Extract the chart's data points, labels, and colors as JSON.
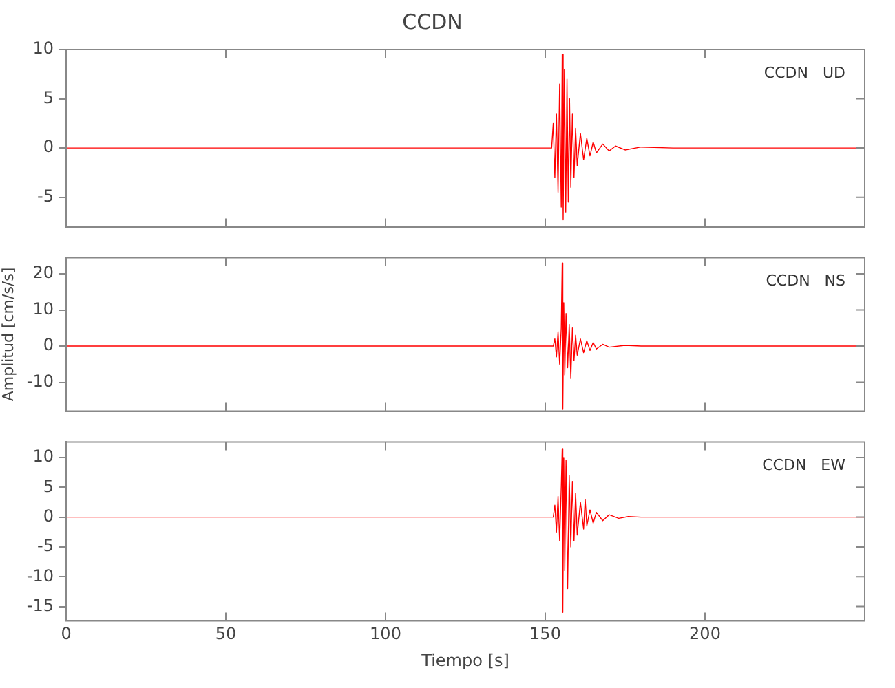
{
  "chart_data": [
    {
      "type": "line",
      "title": "CCDN",
      "annotations": [
        "CCDN   UD"
      ],
      "xlim": [
        0,
        250
      ],
      "xticks": [
        0,
        50,
        100,
        150,
        200
      ],
      "ylim": [
        -8,
        10
      ],
      "yticks": [
        -5,
        0,
        5,
        10
      ],
      "tick_labels": "y",
      "series": [
        {
          "color": "#ff0000",
          "x": [
            0,
            25,
            50,
            75,
            100,
            125,
            150,
            152,
            152.5,
            153,
            153.5,
            154,
            154.5,
            155,
            155.3,
            155.6,
            156,
            156.4,
            156.8,
            157.2,
            157.6,
            158,
            158.5,
            159,
            159.5,
            160,
            161,
            162,
            163,
            164,
            165,
            166,
            168,
            170,
            172,
            175,
            180,
            190,
            200,
            250
          ],
          "values": [
            0,
            0,
            0,
            0,
            0,
            0,
            0,
            0,
            2.5,
            -3,
            3.5,
            -4.5,
            6.5,
            -6,
            9.5,
            -7.3,
            8,
            -6.5,
            7,
            -5.5,
            5,
            -4,
            3.5,
            -3,
            2,
            -1.8,
            1.5,
            -1.2,
            1,
            -0.8,
            0.6,
            -0.5,
            0.4,
            -0.3,
            0.2,
            -0.2,
            0.1,
            0,
            0,
            0
          ]
        }
      ]
    },
    {
      "type": "line",
      "ylabel": "Amplitud [cm/s/s]",
      "annotations": [
        "CCDN   NS"
      ],
      "xlim": [
        0,
        250
      ],
      "xticks": [
        0,
        50,
        100,
        150,
        200
      ],
      "ylim": [
        -18,
        24.5
      ],
      "yticks": [
        -10,
        0,
        10,
        20
      ],
      "tick_labels": "y",
      "series": [
        {
          "color": "#ff0000",
          "x": [
            0,
            25,
            50,
            75,
            100,
            125,
            150,
            152.5,
            153,
            153.5,
            154,
            154.5,
            155,
            155.3,
            155.5,
            155.8,
            156.1,
            156.5,
            157,
            157.5,
            158,
            158.5,
            159,
            159.5,
            160,
            161,
            162,
            163,
            164,
            165,
            166,
            168,
            170,
            175,
            180,
            200,
            250
          ],
          "values": [
            0,
            0,
            0,
            0,
            0,
            0,
            0,
            0,
            2,
            -3,
            4,
            -5,
            5,
            23,
            -17.5,
            12,
            -8,
            9,
            -6,
            6,
            -9,
            5,
            -4,
            3,
            -2.5,
            2,
            -1.8,
            1.5,
            -1.2,
            1,
            -0.8,
            0.5,
            -0.3,
            0.2,
            0,
            0,
            0
          ]
        }
      ]
    },
    {
      "type": "line",
      "xlabel": "Tiempo [s]",
      "annotations": [
        "CCDN   EW"
      ],
      "xlim": [
        0,
        250
      ],
      "xticks": [
        0,
        50,
        100,
        150,
        200
      ],
      "ylim": [
        -17.4,
        12.6
      ],
      "yticks": [
        -15,
        -10,
        -5,
        0,
        5,
        10
      ],
      "series": [
        {
          "color": "#ff0000",
          "x": [
            0,
            25,
            50,
            75,
            100,
            125,
            150,
            152.5,
            153,
            153.5,
            154,
            154.5,
            155,
            155.3,
            155.5,
            155.8,
            156.1,
            156.5,
            157,
            157.5,
            158,
            158.5,
            159,
            159.5,
            160,
            161,
            162,
            162.5,
            163,
            164,
            165,
            166,
            168,
            170,
            173,
            176,
            180,
            200,
            250
          ],
          "values": [
            0,
            0,
            0,
            0,
            0,
            0,
            0,
            0,
            2,
            -2.5,
            3.5,
            -4,
            5,
            11.5,
            -16,
            10,
            -9,
            9.5,
            -12,
            7,
            -5,
            6,
            -4,
            4,
            -3,
            2.5,
            -2,
            3,
            -1.5,
            1.2,
            -1,
            0.8,
            -0.6,
            0.4,
            -0.2,
            0.1,
            0,
            0,
            0
          ]
        }
      ]
    }
  ]
}
